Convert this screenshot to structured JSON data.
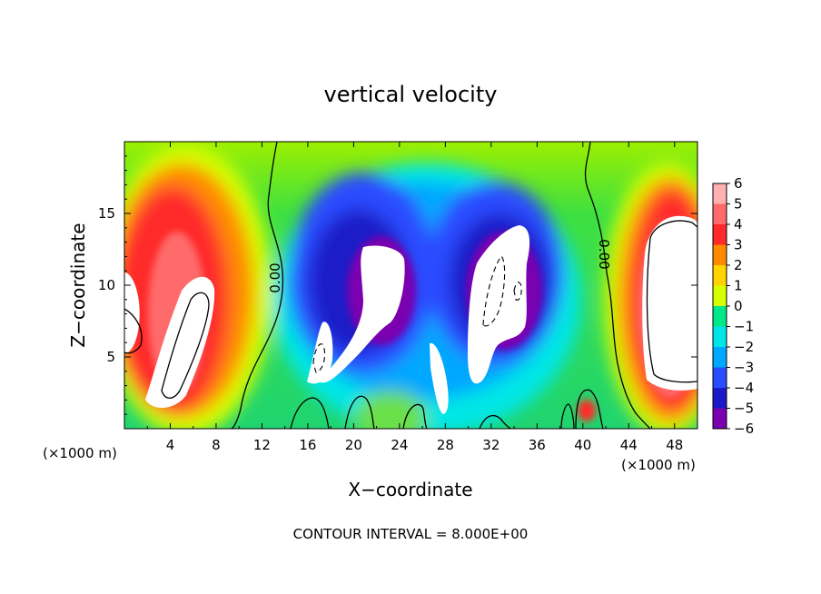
{
  "chart_data": {
    "type": "heatmap",
    "title": "vertical velocity",
    "xlabel": "X−coordinate",
    "ylabel": "Z−coordinate",
    "x_unit": "(×1000 m)",
    "x_unit_right": "(×1000 m)",
    "xlim": [
      0,
      50
    ],
    "ylim": [
      0,
      20
    ],
    "x_ticks": [
      "4",
      "8",
      "12",
      "16",
      "20",
      "24",
      "28",
      "32",
      "36",
      "40",
      "44",
      "48"
    ],
    "y_ticks": [
      "5",
      "10",
      "15"
    ],
    "colorbar": {
      "min": -6,
      "max": 6,
      "labels": [
        "6",
        "5",
        "4",
        "3",
        "2",
        "1",
        "0",
        "−1",
        "−2",
        "−3",
        "−4",
        "−5",
        "−6"
      ],
      "colors": [
        "#ffb0b0",
        "#ff6a6a",
        "#ff2a2a",
        "#ff8a00",
        "#ffd400",
        "#d8ff00",
        "#40e040",
        "#00e88a",
        "#00e6e6",
        "#00a8ff",
        "#2a4cff",
        "#1a1ac8",
        "#7a00b0"
      ]
    },
    "contour_labels": [
      "0.00",
      "0.00"
    ],
    "footer": "CONTOUR INTERVAL = 8.000E+00"
  }
}
